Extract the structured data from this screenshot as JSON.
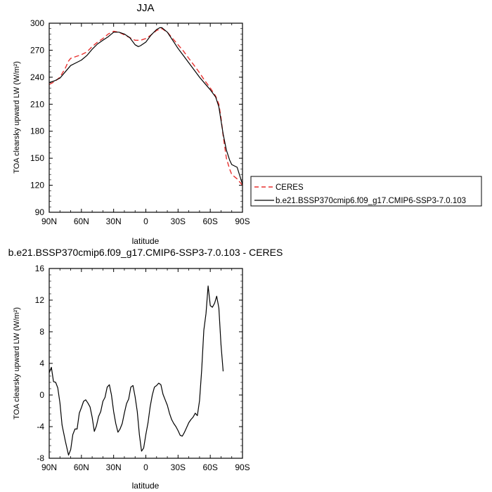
{
  "chart_data": [
    {
      "type": "line",
      "title": "JJA",
      "xlabel": "latitude",
      "ylabel": "TOA clearsky upward LW (W/m²)",
      "xlim": [
        -90,
        90
      ],
      "ylim": [
        90,
        300
      ],
      "xticks": [
        -90,
        -60,
        -30,
        0,
        30,
        60,
        90
      ],
      "xtick_labels": [
        "90N",
        "60N",
        "30N",
        "0",
        "30S",
        "60S",
        "90S"
      ],
      "yticks": [
        90,
        120,
        150,
        180,
        210,
        240,
        270,
        300
      ],
      "ytick_labels": [
        "90",
        "120",
        "150",
        "180",
        "210",
        "240",
        "270",
        "300"
      ],
      "legend_position": "right",
      "series": [
        {
          "name": "CERES",
          "color": "#e8312f",
          "dash": "dashed",
          "points": [
            [
              -90,
              232
            ],
            [
              -85,
              235
            ],
            [
              -80,
              240
            ],
            [
              -75,
              250
            ],
            [
              -72,
              258
            ],
            [
              -70,
              261
            ],
            [
              -60,
              265
            ],
            [
              -55,
              268
            ],
            [
              -50,
              274
            ],
            [
              -45,
              279
            ],
            [
              -40,
              283
            ],
            [
              -35,
              288
            ],
            [
              -30,
              291
            ],
            [
              -25,
              290
            ],
            [
              -20,
              287
            ],
            [
              -15,
              284
            ],
            [
              -10,
              281
            ],
            [
              -5,
              281
            ],
            [
              0,
              283
            ],
            [
              5,
              287
            ],
            [
              10,
              292
            ],
            [
              15,
              294
            ],
            [
              20,
              290
            ],
            [
              25,
              283
            ],
            [
              30,
              276
            ],
            [
              35,
              269
            ],
            [
              40,
              261
            ],
            [
              45,
              253
            ],
            [
              50,
              245
            ],
            [
              55,
              236
            ],
            [
              60,
              228
            ],
            [
              65,
              219
            ],
            [
              68,
              210
            ],
            [
              70,
              195
            ],
            [
              72,
              175
            ],
            [
              75,
              150
            ],
            [
              78,
              138
            ],
            [
              80,
              132
            ],
            [
              85,
              127
            ],
            [
              90,
              120
            ]
          ]
        },
        {
          "name": "b.e21.BSSP370cmip6.f09_g17.CMIP6-SSP3-7.0.103",
          "color": "#000000",
          "dash": "solid",
          "points": [
            [
              -90,
              234
            ],
            [
              -85,
              236
            ],
            [
              -80,
              239
            ],
            [
              -75,
              246
            ],
            [
              -70,
              253
            ],
            [
              -65,
              256
            ],
            [
              -60,
              259
            ],
            [
              -55,
              264
            ],
            [
              -50,
              271
            ],
            [
              -45,
              277
            ],
            [
              -40,
              281
            ],
            [
              -35,
              285
            ],
            [
              -30,
              290
            ],
            [
              -25,
              290
            ],
            [
              -20,
              288
            ],
            [
              -15,
              284
            ],
            [
              -10,
              276
            ],
            [
              -7,
              274
            ],
            [
              -5,
              275
            ],
            [
              0,
              279
            ],
            [
              5,
              287
            ],
            [
              10,
              293
            ],
            [
              13,
              295
            ],
            [
              15,
              295
            ],
            [
              20,
              290
            ],
            [
              25,
              281
            ],
            [
              30,
              272
            ],
            [
              35,
              264
            ],
            [
              40,
              256
            ],
            [
              45,
              248
            ],
            [
              50,
              240
            ],
            [
              55,
              233
            ],
            [
              60,
              226
            ],
            [
              65,
              218
            ],
            [
              68,
              207
            ],
            [
              70,
              192
            ],
            [
              72,
              177
            ],
            [
              75,
              159
            ],
            [
              78,
              148
            ],
            [
              80,
              143
            ],
            [
              85,
              140
            ],
            [
              90,
              121
            ]
          ]
        }
      ]
    },
    {
      "type": "line",
      "title": "b.e21.BSSP370cmip6.f09_g17.CMIP6-SSP3-7.0.103 - CERES",
      "xlabel": "latitude",
      "ylabel": "TOA clearsky upward LW (W/m²)",
      "xlim": [
        -90,
        90
      ],
      "ylim": [
        -8,
        16
      ],
      "xticks": [
        -90,
        -60,
        -30,
        0,
        30,
        60,
        90
      ],
      "xtick_labels": [
        "90N",
        "60N",
        "30N",
        "0",
        "30S",
        "60S",
        "90S"
      ],
      "yticks": [
        -8,
        -4,
        0,
        4,
        8,
        12,
        16
      ],
      "ytick_labels": [
        "-8",
        "-4",
        "0",
        "4",
        "8",
        "12",
        "16"
      ],
      "series": [
        {
          "color": "#000000",
          "dash": "solid",
          "points": [
            [
              -90,
              2.8
            ],
            [
              -88,
              3.5
            ],
            [
              -86,
              1.7
            ],
            [
              -84,
              1.6
            ],
            [
              -82,
              0.9
            ],
            [
              -80,
              -1.0
            ],
            [
              -78,
              -3.8
            ],
            [
              -75,
              -5.8
            ],
            [
              -72,
              -7.6
            ],
            [
              -70,
              -6.9
            ],
            [
              -68,
              -5.0
            ],
            [
              -66,
              -4.3
            ],
            [
              -64,
              -4.3
            ],
            [
              -62,
              -2.3
            ],
            [
              -60,
              -1.6
            ],
            [
              -58,
              -0.8
            ],
            [
              -56,
              -0.6
            ],
            [
              -54,
              -1.0
            ],
            [
              -52,
              -1.5
            ],
            [
              -50,
              -2.8
            ],
            [
              -48,
              -4.6
            ],
            [
              -46,
              -3.9
            ],
            [
              -44,
              -2.7
            ],
            [
              -42,
              -2.1
            ],
            [
              -40,
              -0.8
            ],
            [
              -38,
              -0.3
            ],
            [
              -36,
              1.0
            ],
            [
              -34,
              1.3
            ],
            [
              -32,
              0.0
            ],
            [
              -30,
              -2.1
            ],
            [
              -28,
              -3.6
            ],
            [
              -26,
              -4.7
            ],
            [
              -24,
              -4.3
            ],
            [
              -22,
              -3.6
            ],
            [
              -20,
              -2.3
            ],
            [
              -18,
              -1.1
            ],
            [
              -16,
              -0.5
            ],
            [
              -14,
              1.0
            ],
            [
              -12,
              1.2
            ],
            [
              -10,
              -0.2
            ],
            [
              -8,
              -2.1
            ],
            [
              -6,
              -5.0
            ],
            [
              -4,
              -7.1
            ],
            [
              -2,
              -6.7
            ],
            [
              0,
              -5.0
            ],
            [
              2,
              -3.5
            ],
            [
              4,
              -1.5
            ],
            [
              6,
              0.0
            ],
            [
              8,
              1.0
            ],
            [
              10,
              1.2
            ],
            [
              12,
              1.5
            ],
            [
              14,
              1.3
            ],
            [
              16,
              0.1
            ],
            [
              18,
              -0.6
            ],
            [
              20,
              -1.3
            ],
            [
              22,
              -2.3
            ],
            [
              24,
              -3.1
            ],
            [
              26,
              -3.6
            ],
            [
              28,
              -4.0
            ],
            [
              30,
              -4.5
            ],
            [
              32,
              -5.1
            ],
            [
              34,
              -5.2
            ],
            [
              36,
              -4.7
            ],
            [
              38,
              -4.1
            ],
            [
              40,
              -3.5
            ],
            [
              42,
              -3.1
            ],
            [
              44,
              -2.8
            ],
            [
              46,
              -2.3
            ],
            [
              48,
              -2.6
            ],
            [
              50,
              -0.7
            ],
            [
              52,
              3.1
            ],
            [
              54,
              8.2
            ],
            [
              56,
              10.3
            ],
            [
              58,
              13.8
            ],
            [
              60,
              11.3
            ],
            [
              62,
              11.1
            ],
            [
              64,
              11.6
            ],
            [
              66,
              12.5
            ],
            [
              68,
              11.0
            ],
            [
              70,
              6.4
            ],
            [
              72,
              3.0
            ]
          ]
        }
      ]
    }
  ]
}
